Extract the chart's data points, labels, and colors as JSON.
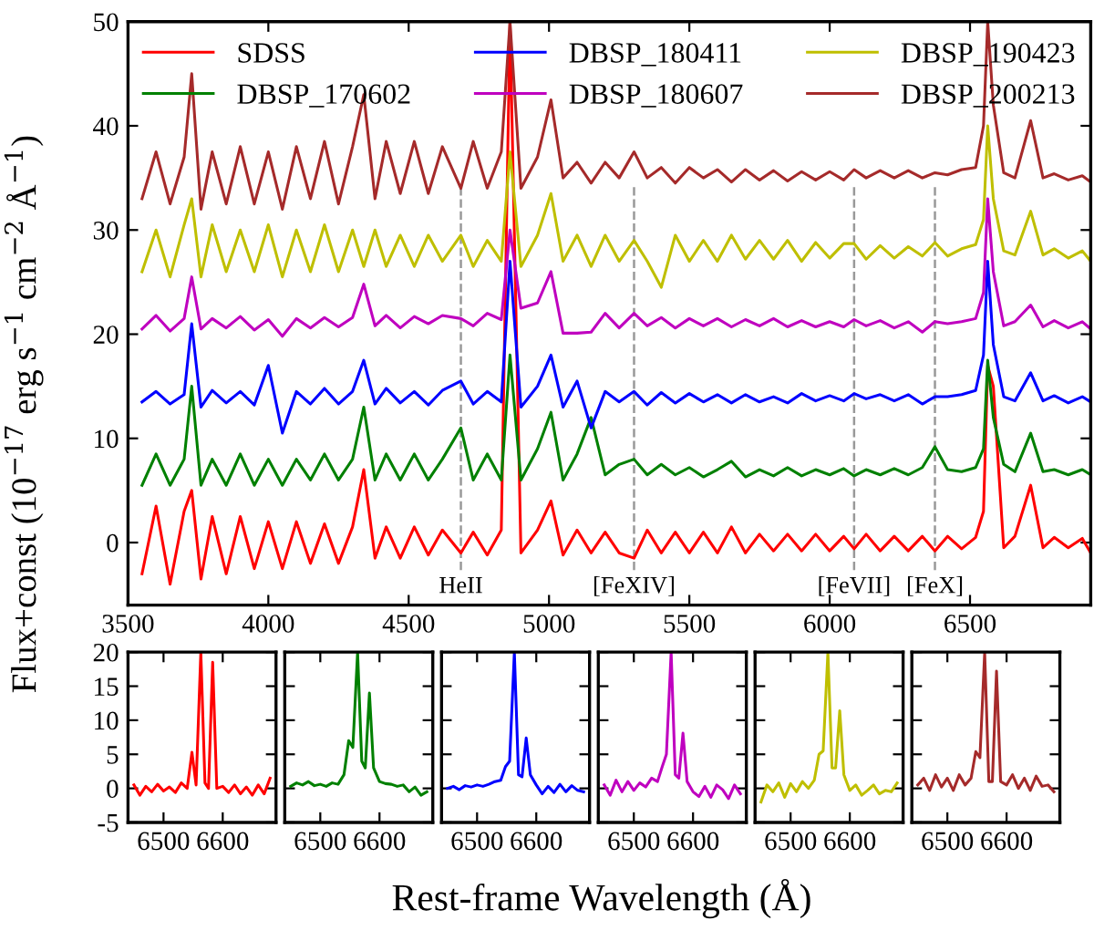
{
  "chart_data": [
    {
      "type": "line",
      "xlabel": "Rest-frame Wavelength (Å)",
      "ylabel": "Flux+const (10$^{−17}$ erg s$^{−1}$ cm$^{−2}$ Å$^{−1}$)",
      "xlim": [
        3500,
        6930
      ],
      "ylim": [
        -6,
        50
      ],
      "xticks": [
        3500,
        4000,
        4500,
        5000,
        5500,
        6000,
        6500
      ],
      "yticks": [
        0,
        10,
        20,
        30,
        40,
        50
      ],
      "legend": "top",
      "x": [
        3550,
        3600,
        3650,
        3700,
        3727,
        3760,
        3800,
        3850,
        3900,
        3950,
        4000,
        4050,
        4100,
        4150,
        4200,
        4250,
        4300,
        4340,
        4380,
        4420,
        4470,
        4520,
        4570,
        4620,
        4686,
        4730,
        4780,
        4830,
        4861,
        4900,
        4959,
        5007,
        5050,
        5100,
        5150,
        5200,
        5250,
        5303,
        5350,
        5400,
        5450,
        5500,
        5550,
        5600,
        5650,
        5700,
        5750,
        5800,
        5850,
        5900,
        5950,
        6000,
        6050,
        6087,
        6130,
        6180,
        6230,
        6280,
        6330,
        6375,
        6420,
        6470,
        6520,
        6548,
        6563,
        6583,
        6620,
        6660,
        6716,
        6760,
        6800,
        6850,
        6900,
        6930
      ],
      "series": [
        {
          "name": "SDSS",
          "color": "#ff0000",
          "values": [
            -3,
            3.5,
            -4,
            3,
            5,
            -3.5,
            2.5,
            -3,
            2.5,
            -2.5,
            2,
            -2.5,
            2,
            -2,
            1.8,
            -2,
            1.5,
            7,
            -1.5,
            1.5,
            -1.5,
            1.5,
            -1.2,
            1.2,
            -1,
            1,
            -1.2,
            1.2,
            50,
            -1,
            1.2,
            4,
            -1.2,
            1.2,
            -1,
            1,
            -1,
            -1.5,
            1.2,
            -1,
            1,
            -1,
            1,
            -1,
            1.5,
            -1,
            0.8,
            -0.8,
            0.8,
            -0.8,
            0.8,
            -0.8,
            0.6,
            -0.6,
            0.8,
            -0.8,
            0.6,
            -0.8,
            0.6,
            -0.8,
            0.6,
            -0.6,
            0.5,
            3,
            17,
            15,
            -0.5,
            0.6,
            5.5,
            -0.5,
            0.5,
            -0.5,
            0.4,
            -1
          ]
        },
        {
          "name": "DBSP_170602",
          "color": "#008000",
          "values": [
            5.5,
            8.5,
            5.5,
            8,
            15,
            5.5,
            8,
            5.5,
            8.5,
            5.5,
            8,
            5.5,
            8,
            6,
            8.5,
            6,
            8,
            13,
            6,
            8.5,
            6,
            8.5,
            6,
            8,
            11,
            6,
            8.5,
            6,
            18,
            6,
            9,
            12.5,
            6,
            8.5,
            12,
            6.5,
            7.5,
            8,
            6.5,
            7.5,
            6.5,
            7.2,
            6.3,
            7,
            7.8,
            6.3,
            7,
            6.4,
            7.2,
            6.4,
            7,
            6.5,
            7.1,
            6.4,
            7,
            6.5,
            7.1,
            6.5,
            7.2,
            9.2,
            7,
            6.8,
            7.2,
            9,
            17.5,
            12,
            7.5,
            6.8,
            10.5,
            6.8,
            7,
            6.5,
            7,
            6.5
          ]
        },
        {
          "name": "DBSP_180411",
          "color": "#0000ff",
          "values": [
            13.5,
            14.5,
            13.3,
            14.2,
            21,
            13,
            14.6,
            13.4,
            14.5,
            13.2,
            17,
            10.5,
            14.5,
            13.3,
            14.8,
            13.3,
            14.5,
            17.5,
            13.3,
            14.8,
            13.4,
            14.5,
            13.2,
            14.6,
            15.5,
            13.3,
            14.5,
            13.5,
            27,
            13,
            15,
            18,
            13,
            15.5,
            11,
            14.5,
            13.5,
            14.5,
            13.2,
            14.4,
            13.4,
            14.3,
            13.5,
            14.2,
            13.4,
            14.2,
            13.5,
            14,
            13.4,
            14.3,
            13.6,
            14.1,
            13.6,
            14.3,
            13.8,
            14.2,
            13.6,
            14.2,
            13.3,
            14,
            14,
            14.2,
            14.6,
            18,
            27,
            19,
            14,
            13.6,
            16.3,
            13.6,
            14.1,
            13.4,
            14,
            13.5
          ]
        },
        {
          "name": "DBSP_180607",
          "color": "#bf00bf",
          "values": [
            20.5,
            21.8,
            20.3,
            21.5,
            25.5,
            20.5,
            21.5,
            20.6,
            21.7,
            20.4,
            21.4,
            19.8,
            21.5,
            20.6,
            21.6,
            20.7,
            21.6,
            24.8,
            20.8,
            21.8,
            20.6,
            21.7,
            21,
            21.8,
            21.5,
            20.8,
            22,
            21.4,
            30,
            22.5,
            23,
            26,
            20.1,
            20.1,
            20.2,
            22,
            20.6,
            22,
            20.8,
            21.6,
            20.6,
            21.5,
            20.8,
            21.5,
            20.7,
            21.4,
            20.8,
            21.5,
            20.7,
            21.3,
            20.7,
            21.2,
            20.7,
            21.4,
            20.8,
            21.3,
            20.6,
            21.2,
            20.2,
            21.2,
            21,
            21.2,
            21.5,
            24,
            33,
            26,
            20.8,
            21.2,
            22.8,
            20.7,
            21.3,
            20.6,
            21.2,
            20.5
          ]
        },
        {
          "name": "DBSP_190423",
          "color": "#bfbf00",
          "values": [
            26,
            30,
            25.5,
            30.5,
            33,
            25.5,
            30.5,
            26,
            30,
            26,
            30.5,
            25.5,
            30,
            26,
            30.5,
            26,
            30,
            26.5,
            30,
            26.5,
            29.5,
            26.5,
            29.5,
            27,
            29.5,
            26.5,
            29,
            27,
            37.5,
            26.5,
            29.5,
            33.5,
            27,
            29.5,
            26.5,
            29.5,
            27,
            29,
            27,
            24.5,
            29.5,
            27,
            29,
            27,
            29.5,
            27.2,
            29,
            27.2,
            29,
            27,
            28.8,
            27.3,
            28.7,
            28.7,
            27.2,
            28.5,
            27.3,
            28.4,
            27.5,
            28.8,
            27.5,
            28.2,
            28.6,
            31,
            40,
            33,
            28,
            27.6,
            31.8,
            27.6,
            28.2,
            27.3,
            28,
            27
          ]
        },
        {
          "name": "DBSP_200213",
          "color": "#a52a2a",
          "values": [
            33,
            37.5,
            32.5,
            37,
            45,
            32,
            37.5,
            32.5,
            38,
            32.5,
            37.5,
            32,
            38,
            33,
            38.5,
            32.5,
            38,
            43,
            33,
            38.5,
            33.5,
            38.5,
            33.5,
            38,
            34,
            38.5,
            34,
            37.5,
            50,
            34,
            37,
            42.5,
            35,
            36.5,
            34.5,
            36.5,
            35,
            37.5,
            35,
            36,
            34.5,
            36,
            35,
            35.8,
            34.6,
            35.8,
            34.8,
            35.7,
            34.7,
            35.6,
            34.8,
            35.6,
            34.8,
            35.8,
            35,
            35.7,
            35,
            35.7,
            35,
            35.5,
            35.3,
            35.8,
            36,
            40,
            50,
            42,
            35.5,
            35,
            40.5,
            35,
            35.4,
            34.8,
            35.2,
            34.6
          ]
        }
      ],
      "ref_lines": [
        {
          "axis": "x",
          "value": 4686,
          "label": "HeII",
          "color": "#999999",
          "line_style": "dashed"
        },
        {
          "axis": "x",
          "value": 5303,
          "label": "[FeXIV]",
          "color": "#999999",
          "line_style": "dashed"
        },
        {
          "axis": "x",
          "value": 6087,
          "label": "[FeVII]",
          "color": "#999999",
          "line_style": "dashed"
        },
        {
          "axis": "x",
          "value": 6375,
          "label": "[FeX]",
          "color": "#999999",
          "line_style": "dashed"
        }
      ]
    },
    {
      "type": "line",
      "xlim": [
        6440,
        6690
      ],
      "ylim": [
        -5,
        20
      ],
      "xticks": [
        6500,
        6600
      ],
      "yticks": [
        -5,
        0,
        5,
        10,
        15,
        20
      ],
      "x": [
        6450,
        6460,
        6470,
        6480,
        6490,
        6500,
        6510,
        6520,
        6530,
        6540,
        6548,
        6555,
        6563,
        6570,
        6576,
        6583,
        6590,
        6600,
        6610,
        6620,
        6630,
        6640,
        6650,
        6660,
        6670,
        6680
      ],
      "series": [
        {
          "color": "#ff0000",
          "values": [
            0.5,
            -1,
            0.3,
            -0.5,
            0.6,
            -0.4,
            0.2,
            -0.6,
            0.8,
            0,
            5.3,
            0.5,
            20,
            0.8,
            0,
            18.5,
            0,
            0.3,
            -0.6,
            0.5,
            -0.8,
            0.2,
            -1,
            0.5,
            -0.8,
            1.5
          ]
        }
      ]
    },
    {
      "type": "line",
      "xlim": [
        6440,
        6690
      ],
      "ylim": [
        -5,
        20
      ],
      "xticks": [
        6500,
        6600
      ],
      "yticks": [
        -5,
        0,
        5,
        10,
        15,
        20
      ],
      "tick_labels": "x",
      "x": [
        6450,
        6460,
        6470,
        6480,
        6490,
        6500,
        6510,
        6520,
        6530,
        6540,
        6548,
        6555,
        6563,
        6570,
        6576,
        6583,
        6590,
        6600,
        6610,
        6620,
        6630,
        6640,
        6650,
        6660,
        6670,
        6680
      ],
      "series": [
        {
          "color": "#008000",
          "values": [
            0.3,
            0.8,
            0.5,
            1,
            0.4,
            0.6,
            0.3,
            0.8,
            0.6,
            2,
            7,
            6,
            20,
            4,
            3,
            14,
            3,
            1,
            0.7,
            0.6,
            0.3,
            0.5,
            -0.5,
            0.2,
            -1,
            -0.5
          ]
        }
      ]
    },
    {
      "type": "line",
      "xlim": [
        6440,
        6690
      ],
      "ylim": [
        -5,
        20
      ],
      "xticks": [
        6500,
        6600
      ],
      "yticks": [
        -5,
        0,
        5,
        10,
        15,
        20
      ],
      "tick_labels": "x",
      "x": [
        6450,
        6460,
        6470,
        6480,
        6490,
        6500,
        6510,
        6520,
        6530,
        6540,
        6548,
        6555,
        6563,
        6570,
        6576,
        6583,
        6590,
        6600,
        6610,
        6620,
        6630,
        6640,
        6650,
        6660,
        6670,
        6680
      ],
      "series": [
        {
          "color": "#0000ff",
          "values": [
            0,
            0.3,
            -0.2,
            0.4,
            0.2,
            0.5,
            0.3,
            0.6,
            1,
            1.2,
            3.2,
            4,
            20,
            2,
            1.7,
            7.4,
            2,
            0.5,
            -0.8,
            0.3,
            -0.6,
            0.6,
            -0.5,
            0.4,
            -0.3,
            -0.5
          ]
        }
      ]
    },
    {
      "type": "line",
      "xlim": [
        6440,
        6690
      ],
      "ylim": [
        -5,
        20
      ],
      "xticks": [
        6500,
        6600
      ],
      "yticks": [
        -5,
        0,
        5,
        10,
        15,
        20
      ],
      "tick_labels": "x",
      "x": [
        6450,
        6460,
        6470,
        6480,
        6490,
        6500,
        6510,
        6520,
        6530,
        6540,
        6548,
        6555,
        6563,
        6570,
        6576,
        6583,
        6590,
        6600,
        6610,
        6620,
        6630,
        6640,
        6650,
        6660,
        6670,
        6680
      ],
      "series": [
        {
          "color": "#bf00bf",
          "values": [
            0.5,
            -1,
            1.2,
            -0.5,
            1,
            -0.3,
            0.8,
            0.2,
            1.5,
            1,
            3.2,
            5,
            20,
            2,
            1.5,
            8.1,
            1,
            -0.5,
            -1.2,
            0.3,
            -1.3,
            0.5,
            -0.2,
            -1.5,
            0.5,
            -0.8
          ]
        }
      ]
    },
    {
      "type": "line",
      "xlim": [
        6440,
        6690
      ],
      "ylim": [
        -5,
        20
      ],
      "xticks": [
        6500,
        6600
      ],
      "yticks": [
        -5,
        0,
        5,
        10,
        15,
        20
      ],
      "tick_labels": "x",
      "x": [
        6450,
        6460,
        6470,
        6480,
        6490,
        6500,
        6510,
        6520,
        6530,
        6540,
        6548,
        6555,
        6563,
        6570,
        6576,
        6583,
        6590,
        6600,
        6610,
        6620,
        6630,
        6640,
        6650,
        6660,
        6670,
        6680
      ],
      "series": [
        {
          "color": "#bfbf00",
          "values": [
            -2,
            0.5,
            -0.5,
            0.8,
            -1.3,
            0.7,
            -0.5,
            1,
            0,
            1.2,
            5,
            5.5,
            20,
            3,
            3,
            11.4,
            2,
            -0.3,
            0.5,
            -1,
            -0.3,
            0.5,
            -0.8,
            -0.3,
            -0.5,
            0.8
          ]
        }
      ]
    },
    {
      "type": "line",
      "xlim": [
        6440,
        6690
      ],
      "ylim": [
        -5,
        20
      ],
      "xticks": [
        6500,
        6600
      ],
      "yticks": [
        -5,
        0,
        5,
        10,
        15,
        20
      ],
      "tick_labels": "x",
      "x": [
        6450,
        6460,
        6470,
        6480,
        6490,
        6500,
        6510,
        6520,
        6530,
        6540,
        6548,
        6555,
        6563,
        6570,
        6576,
        6583,
        6590,
        6600,
        6610,
        6620,
        6630,
        6640,
        6650,
        6660,
        6670,
        6680
      ],
      "series": [
        {
          "color": "#a52a2a",
          "values": [
            0.5,
            1.5,
            -0.3,
            2,
            0.2,
            1.5,
            -0.3,
            2,
            0.5,
            1.5,
            5.4,
            4.5,
            20,
            1,
            1,
            17.2,
            1,
            0.5,
            2,
            0,
            1.5,
            -0.3,
            1.8,
            0.3,
            0.5,
            -0.5
          ]
        }
      ]
    }
  ]
}
